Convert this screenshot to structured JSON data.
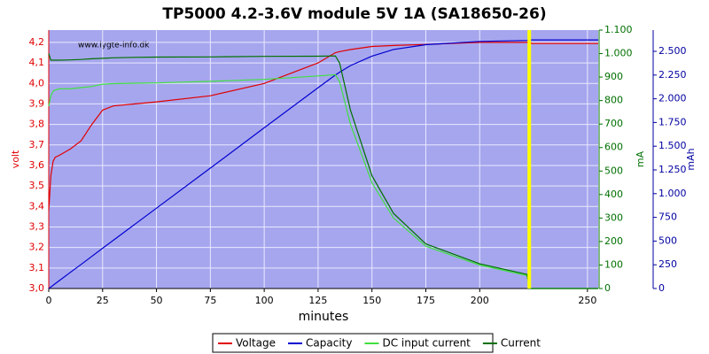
{
  "chart_data": {
    "type": "line",
    "title": "TP5000 4.2-3.6V module 5V 1A (SA18650-26)",
    "watermark": "www.lygte-info.dk",
    "xlabel": "minutes",
    "ylabel": "volt",
    "y2label": "mA",
    "y3label": "mAh",
    "x": [
      0,
      1,
      2,
      3,
      5,
      10,
      15,
      20,
      25,
      30,
      40,
      50,
      75,
      100,
      125,
      133,
      135,
      140,
      150,
      160,
      175,
      200,
      222,
      223,
      224,
      255
    ],
    "xlim": [
      0,
      255
    ],
    "xticks": [
      0,
      25,
      50,
      75,
      100,
      125,
      150,
      175,
      200,
      250
    ],
    "ylim": [
      3.0,
      4.26
    ],
    "yticks": [
      {
        "value": 3.0,
        "label": "3,0"
      },
      {
        "value": 3.1,
        "label": "3,1"
      },
      {
        "value": 3.2,
        "label": "3,2"
      },
      {
        "value": 3.3,
        "label": "3,3"
      },
      {
        "value": 3.4,
        "label": "3,4"
      },
      {
        "value": 3.5,
        "label": "3,5"
      },
      {
        "value": 3.6,
        "label": "3,6"
      },
      {
        "value": 3.7,
        "label": "3,7"
      },
      {
        "value": 3.8,
        "label": "3,8"
      },
      {
        "value": 3.9,
        "label": "3,9"
      },
      {
        "value": 4.0,
        "label": "4,0"
      },
      {
        "value": 4.1,
        "label": "4,1"
      },
      {
        "value": 4.2,
        "label": "4,2"
      }
    ],
    "y2lim": [
      0,
      1100
    ],
    "y2ticks": [
      0,
      100,
      200,
      300,
      400,
      500,
      600,
      700,
      800,
      900,
      {
        "value": 1000,
        "label": "1.000"
      },
      {
        "value": 1100,
        "label": "1.100"
      }
    ],
    "y3lim": [
      0,
      2724
    ],
    "y3ticks": [
      0,
      250,
      500,
      750,
      {
        "value": 1000,
        "label": "1.000"
      },
      {
        "value": 1250,
        "label": "1.250"
      },
      {
        "value": 1500,
        "label": "1.500"
      },
      {
        "value": 1750,
        "label": "1.750"
      },
      {
        "value": 2000,
        "label": "2.000"
      },
      {
        "value": 2250,
        "label": "2.250"
      },
      {
        "value": 2500,
        "label": "2.500"
      }
    ],
    "grid": true,
    "marker_x": 223,
    "marker_color": "#ffff00",
    "series": [
      {
        "name": "Voltage",
        "color": "#e00000",
        "axis": "y",
        "values": [
          3.38,
          3.55,
          3.62,
          3.64,
          3.65,
          3.68,
          3.72,
          3.8,
          3.87,
          3.89,
          3.9,
          3.91,
          3.94,
          4.0,
          4.1,
          4.15,
          4.155,
          4.165,
          4.18,
          4.185,
          4.19,
          4.2,
          4.2,
          4.21,
          4.195,
          4.195
        ]
      },
      {
        "name": "Capacity",
        "color": "#0000d0",
        "axis": "y3",
        "values": [
          0,
          17,
          34,
          51,
          85,
          170,
          254,
          339,
          424,
          508,
          678,
          847,
          1270,
          1694,
          2117,
          2250,
          2280,
          2350,
          2450,
          2520,
          2570,
          2605,
          2615,
          2620,
          2620,
          2620
        ]
      },
      {
        "name": "DC input current",
        "color": "#40e040",
        "axis": "y2",
        "values": [
          776,
          820,
          840,
          845,
          850,
          850,
          855,
          860,
          870,
          872,
          874,
          875,
          882,
          890,
          905,
          910,
          880,
          700,
          450,
          300,
          180,
          100,
          55,
          0,
          0,
          0
        ]
      },
      {
        "name": "Current",
        "color": "#007000",
        "axis": "y2",
        "values": [
          1000,
          972,
          972,
          972,
          972,
          973,
          975,
          978,
          980,
          982,
          984,
          985,
          986,
          988,
          989,
          990,
          960,
          760,
          480,
          320,
          190,
          105,
          60,
          0,
          0,
          0
        ]
      }
    ]
  }
}
